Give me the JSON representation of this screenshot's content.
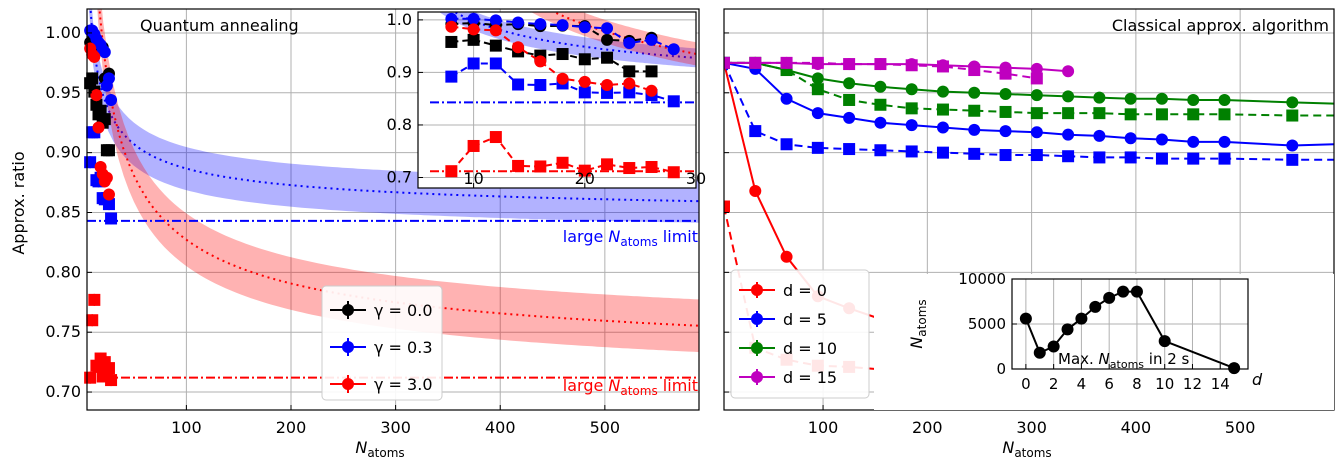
{
  "chart_data": [
    {
      "type": "line",
      "title": "Quantum annealing",
      "xlabel": "N",
      "xlabel_sub": "atoms",
      "ylabel": "Approx. ratio",
      "xlim": [
        5,
        590
      ],
      "ylim": [
        0.685,
        1.02
      ],
      "xticks": [
        100,
        200,
        300,
        400,
        500
      ],
      "yticks": [
        0.7,
        0.75,
        0.8,
        0.85,
        0.9,
        0.95,
        1.0
      ],
      "ytick_labels": [
        "0.70",
        "0.75",
        "0.80",
        "0.85",
        "0.90",
        "0.95",
        "1.00"
      ],
      "grid": true,
      "legend": [
        "γ = 0.0",
        "γ = 0.3",
        "γ = 3.0"
      ],
      "legend_position": "lower-center",
      "series": [
        {
          "name": "γ = 0.0",
          "color": "#000000",
          "marker": "circle",
          "x": [
            8,
            10,
            12,
            14,
            16,
            18,
            20,
            22,
            24,
            26
          ],
          "y": [
            0.992,
            0.994,
            0.99,
            0.992,
            0.988,
            0.989,
            0.988,
            0.962,
            0.96,
            0.966
          ]
        },
        {
          "name": "γ = 0.0",
          "color": "#000000",
          "marker": "square",
          "x": [
            8,
            10,
            12,
            14,
            16,
            18,
            20,
            22,
            24,
            26
          ],
          "y": [
            0.958,
            0.962,
            0.951,
            0.94,
            0.932,
            0.935,
            0.925,
            0.928,
            0.902,
            0.902
          ]
        },
        {
          "name": "γ = 0.3",
          "color": "#0000ff",
          "marker": "circle",
          "x": [
            8,
            10,
            12,
            14,
            16,
            18,
            20,
            22,
            24,
            26,
            28
          ],
          "y": [
            1.002,
            1.002,
            0.999,
            0.995,
            0.992,
            0.99,
            0.986,
            0.984,
            0.956,
            0.962,
            0.944
          ]
        },
        {
          "name": "γ = 0.3",
          "color": "#0000ff",
          "marker": "square",
          "x": [
            8,
            10,
            12,
            14,
            16,
            18,
            20,
            22,
            24,
            26,
            28
          ],
          "y": [
            0.892,
            0.917,
            0.917,
            0.877,
            0.876,
            0.879,
            0.862,
            0.861,
            0.862,
            0.857,
            0.845
          ]
        },
        {
          "name": "γ = 3.0",
          "color": "#ff0000",
          "marker": "circle",
          "x": [
            8,
            10,
            12,
            14,
            16,
            18,
            20,
            22,
            24,
            26
          ],
          "y": [
            0.987,
            0.982,
            0.98,
            0.948,
            0.921,
            0.888,
            0.882,
            0.876,
            0.879,
            0.865
          ]
        },
        {
          "name": "γ = 3.0",
          "color": "#ff0000",
          "marker": "square",
          "x": [
            8,
            10,
            12,
            14,
            16,
            18,
            20,
            22,
            24,
            26,
            28
          ],
          "y": [
            0.712,
            0.76,
            0.777,
            0.722,
            0.721,
            0.728,
            0.713,
            0.725,
            0.718,
            0.72,
            0.71
          ]
        }
      ],
      "fit_curves": [
        {
          "color": "#0000ff",
          "limit": 0.843,
          "a": 0.55,
          "band": 0.018
        },
        {
          "color": "#ff0000",
          "limit": 0.712,
          "a": 1.45,
          "band": 0.022
        }
      ],
      "limits": [
        {
          "value": 0.843,
          "color": "#0000ff"
        },
        {
          "value": 0.712,
          "color": "#ff0000"
        }
      ],
      "annotations": [
        {
          "text_pre": "large ",
          "text_main": "N",
          "text_sub": "atoms",
          "text_post": " limit",
          "color": "#0000ff"
        },
        {
          "text_pre": "large ",
          "text_main": "N",
          "text_sub": "atoms",
          "text_post": " limit",
          "color": "#ff0000"
        }
      ]
    },
    {
      "type": "line",
      "title": "",
      "xlim": [
        5,
        30
      ],
      "ylim": [
        0.68,
        1.015
      ],
      "xticks": [
        10,
        20,
        30
      ],
      "yticks": [
        0.7,
        0.8,
        0.9,
        1.0
      ],
      "ytick_labels": [
        "0.7",
        "0.8",
        "0.9",
        "1.0"
      ],
      "grid": true
    },
    {
      "type": "line",
      "title": "Classical approx. algorithm",
      "xlabel": "N",
      "xlabel_sub": "atoms",
      "xlim": [
        5,
        590
      ],
      "ylim": [
        0.685,
        1.02
      ],
      "xticks": [
        100,
        200,
        300,
        400,
        500
      ],
      "grid": true,
      "legend": [
        "d = 0",
        "d = 5",
        "d = 10",
        "d = 15"
      ],
      "legend_position": "lower-left",
      "series": [
        {
          "name": "d = 0",
          "color": "#ff0000",
          "style": "solid",
          "marker": "circle",
          "x": [
            5,
            35,
            65,
            95,
            125,
            155,
            185,
            215,
            245,
            275,
            305,
            335,
            365,
            395,
            425,
            455,
            485,
            550,
            590
          ],
          "y": [
            0.975,
            0.868,
            0.813,
            0.78,
            0.77,
            0.761,
            0.754,
            0.752,
            0.746,
            0.744,
            0.742,
            0.74,
            0.738,
            0.736,
            0.734,
            0.731,
            0.733,
            0.728,
            0.725
          ]
        },
        {
          "name": "d = 0",
          "color": "#ff0000",
          "style": "dashed",
          "marker": "square",
          "x": [
            5,
            35,
            65,
            95,
            125,
            155,
            185,
            215,
            245,
            275,
            305,
            335,
            365,
            395,
            425,
            455,
            485,
            550,
            590
          ],
          "y": [
            0.855,
            0.737,
            0.727,
            0.722,
            0.721,
            0.719,
            0.717,
            0.717,
            0.716,
            0.715,
            0.715,
            0.714,
            0.713,
            0.713,
            0.712,
            0.711,
            0.711,
            0.707,
            0.708
          ]
        },
        {
          "name": "d = 5",
          "color": "#0000ff",
          "style": "solid",
          "marker": "circle",
          "x": [
            5,
            35,
            65,
            95,
            125,
            155,
            185,
            215,
            245,
            275,
            305,
            335,
            365,
            395,
            425,
            455,
            485,
            550,
            590
          ],
          "y": [
            0.975,
            0.97,
            0.945,
            0.933,
            0.929,
            0.925,
            0.923,
            0.921,
            0.919,
            0.918,
            0.917,
            0.915,
            0.914,
            0.912,
            0.911,
            0.909,
            0.909,
            0.906,
            0.907
          ]
        },
        {
          "name": "d = 5",
          "color": "#0000ff",
          "style": "dashed",
          "marker": "square",
          "x": [
            5,
            35,
            65,
            95,
            125,
            155,
            185,
            215,
            245,
            275,
            305,
            335,
            365,
            395,
            425,
            455,
            485,
            550,
            590
          ],
          "y": [
            0.975,
            0.918,
            0.907,
            0.904,
            0.903,
            0.902,
            0.901,
            0.9,
            0.899,
            0.898,
            0.898,
            0.897,
            0.896,
            0.896,
            0.895,
            0.895,
            0.895,
            0.894,
            0.894
          ]
        },
        {
          "name": "d = 10",
          "color": "#008000",
          "style": "solid",
          "marker": "circle",
          "x": [
            5,
            35,
            65,
            95,
            125,
            155,
            185,
            215,
            245,
            275,
            305,
            335,
            365,
            395,
            425,
            455,
            485,
            550,
            590
          ],
          "y": [
            0.975,
            0.975,
            0.969,
            0.962,
            0.958,
            0.955,
            0.953,
            0.951,
            0.95,
            0.949,
            0.948,
            0.947,
            0.946,
            0.945,
            0.945,
            0.944,
            0.944,
            0.942,
            0.941
          ]
        },
        {
          "name": "d = 10",
          "color": "#008000",
          "style": "dashed",
          "marker": "square",
          "x": [
            5,
            35,
            65,
            95,
            125,
            155,
            185,
            215,
            245,
            275,
            305,
            335,
            365,
            395,
            425,
            455,
            485,
            550,
            590
          ],
          "y": [
            0.975,
            0.975,
            0.969,
            0.953,
            0.944,
            0.94,
            0.937,
            0.936,
            0.935,
            0.934,
            0.933,
            0.933,
            0.933,
            0.932,
            0.932,
            0.932,
            0.932,
            0.931,
            0.931
          ]
        },
        {
          "name": "d = 15",
          "color": "#bf00bf",
          "style": "solid",
          "marker": "circle",
          "x": [
            5,
            35,
            65,
            95,
            125,
            155,
            185,
            215,
            245,
            275,
            305,
            335
          ],
          "y": [
            0.975,
            0.975,
            0.975,
            0.974,
            0.974,
            0.974,
            0.974,
            0.973,
            0.972,
            0.971,
            0.97,
            0.968
          ]
        },
        {
          "name": "d = 15",
          "color": "#bf00bf",
          "style": "dashed",
          "marker": "square",
          "x": [
            5,
            35,
            65,
            95,
            125,
            155,
            185,
            215,
            245,
            275,
            305
          ],
          "y": [
            0.975,
            0.975,
            0.975,
            0.975,
            0.974,
            0.974,
            0.973,
            0.972,
            0.969,
            0.966,
            0.962
          ]
        }
      ]
    },
    {
      "type": "line",
      "title": "",
      "ylabel": "N",
      "ylabel_sub": "atoms",
      "xlabel": "d",
      "inner_label_pre": "Max. ",
      "inner_label_main": "N",
      "inner_label_sub": "atoms",
      "inner_label_post": " in 2 s",
      "xlim": [
        -1,
        16
      ],
      "ylim": [
        0,
        10000
      ],
      "xticks": [
        0,
        2,
        4,
        6,
        8,
        10,
        12,
        14
      ],
      "yticks": [
        0,
        5000,
        10000
      ],
      "ytick_labels": [
        "0",
        "5000",
        "10000"
      ],
      "grid": true,
      "series": [
        {
          "name": "Max. N atoms",
          "color": "#000000",
          "marker": "circle",
          "x": [
            0,
            1,
            2,
            3,
            4,
            5,
            6,
            7,
            8,
            10,
            15
          ],
          "y": [
            5600,
            1800,
            2500,
            4400,
            5600,
            6900,
            7900,
            8600,
            8600,
            3100,
            100
          ]
        }
      ]
    }
  ]
}
